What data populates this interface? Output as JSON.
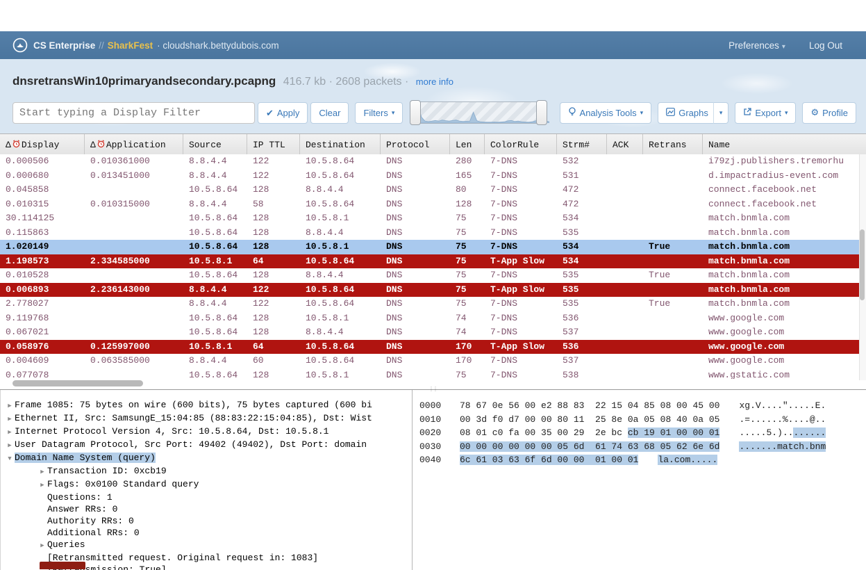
{
  "colors": {
    "appbar_blue": "#4a759e",
    "sharkfest_gold": "#e9c14c",
    "accent_blue": "#3978b8",
    "row_text_purple": "#82566f",
    "slow_row_red": "#b01410",
    "selected_row_blue": "#a9c9ee",
    "hex_highlight_blue": "#b4cee8"
  },
  "icons": {
    "delta": "Δ",
    "check": "✔",
    "caret": "▾",
    "gear": "⚙",
    "tri_right": "▶",
    "tri_down": "▼",
    "dot_sep": "·",
    "gripper_dots": "⋮⋮"
  },
  "header": {
    "brand": "CS Enterprise",
    "brand_sep": "//",
    "event": "SharkFest",
    "host": "· cloudshark.bettydubois.com",
    "preferences": "Preferences",
    "logout": "Log Out"
  },
  "file_bar": {
    "filename": "dnsretransWin10primaryandsecondary.pcapng",
    "meta": "416.7 kb · 2608 packets ·",
    "more_info": "more info"
  },
  "filter_bar": {
    "placeholder": "Start typing a Display Filter",
    "apply": "Apply",
    "clear": "Clear",
    "filters": "Filters",
    "analysis_tools": "Analysis Tools",
    "graphs": "Graphs",
    "export": "Export",
    "profile": "Profile",
    "sparkline": {
      "heights": [
        0.06,
        0.9,
        0.3,
        0.1,
        0.07,
        0.1,
        0.13,
        0.1,
        0.15,
        0.12,
        0.1,
        0.13,
        0.15,
        0.1,
        0.08,
        0.09,
        0.1,
        0.55,
        0.12,
        0.06,
        0.05,
        0.04,
        0.04,
        0.05,
        0.04,
        0.05,
        0.06,
        0.11,
        0.13,
        0.08,
        0.1,
        0.06,
        0.05,
        0.04,
        0.06,
        0.11,
        0.15,
        0.08,
        0.11,
        0.06
      ]
    }
  },
  "packet_table": {
    "columns": [
      {
        "label": "Display",
        "delta_clock": true
      },
      {
        "label": "Application",
        "delta_clock": true
      },
      {
        "label": "Source"
      },
      {
        "label": "IP TTL"
      },
      {
        "label": "Destination"
      },
      {
        "label": "Protocol"
      },
      {
        "label": "Len"
      },
      {
        "label": "ColorRule"
      },
      {
        "label": "Strm#"
      },
      {
        "label": "ACK"
      },
      {
        "label": "Retrans"
      },
      {
        "label": "Name"
      }
    ],
    "rows": [
      {
        "display": "0.000506",
        "application": "0.010361000",
        "source": "8.8.4.4",
        "ip_ttl": "122",
        "destination": "10.5.8.64",
        "protocol": "DNS",
        "len": "280",
        "color_rule": "7-DNS",
        "stream": "532",
        "ack": "",
        "retrans": "",
        "name": "i79zj.publishers.tremorhu",
        "state": "normal"
      },
      {
        "display": "0.000680",
        "application": "0.013451000",
        "source": "8.8.4.4",
        "ip_ttl": "122",
        "destination": "10.5.8.64",
        "protocol": "DNS",
        "len": "165",
        "color_rule": "7-DNS",
        "stream": "531",
        "ack": "",
        "retrans": "",
        "name": "d.impactradius-event.com",
        "state": "normal"
      },
      {
        "display": "0.045858",
        "application": "",
        "source": "10.5.8.64",
        "ip_ttl": "128",
        "destination": "8.8.4.4",
        "protocol": "DNS",
        "len": "80",
        "color_rule": "7-DNS",
        "stream": "472",
        "ack": "",
        "retrans": "",
        "name": "connect.facebook.net",
        "state": "normal"
      },
      {
        "display": "0.010315",
        "application": "0.010315000",
        "source": "8.8.4.4",
        "ip_ttl": "58",
        "destination": "10.5.8.64",
        "protocol": "DNS",
        "len": "128",
        "color_rule": "7-DNS",
        "stream": "472",
        "ack": "",
        "retrans": "",
        "name": "connect.facebook.net",
        "state": "normal"
      },
      {
        "display": "30.114125",
        "application": "",
        "source": "10.5.8.64",
        "ip_ttl": "128",
        "destination": "10.5.8.1",
        "protocol": "DNS",
        "len": "75",
        "color_rule": "7-DNS",
        "stream": "534",
        "ack": "",
        "retrans": "",
        "name": "match.bnmla.com",
        "state": "normal"
      },
      {
        "display": "0.115863",
        "application": "",
        "source": "10.5.8.64",
        "ip_ttl": "128",
        "destination": "8.8.4.4",
        "protocol": "DNS",
        "len": "75",
        "color_rule": "7-DNS",
        "stream": "535",
        "ack": "",
        "retrans": "",
        "name": "match.bnmla.com",
        "state": "normal"
      },
      {
        "display": "1.020149",
        "application": "",
        "source": "10.5.8.64",
        "ip_ttl": "128",
        "destination": "10.5.8.1",
        "protocol": "DNS",
        "len": "75",
        "color_rule": "7-DNS",
        "stream": "534",
        "ack": "",
        "retrans": "True",
        "name": "match.bnmla.com",
        "state": "selected"
      },
      {
        "display": "1.198573",
        "application": "2.334585000",
        "source": "10.5.8.1",
        "ip_ttl": "64",
        "destination": "10.5.8.64",
        "protocol": "DNS",
        "len": "75",
        "color_rule": "T-App Slow",
        "stream": "534",
        "ack": "",
        "retrans": "",
        "name": "match.bnmla.com",
        "state": "slow"
      },
      {
        "display": "0.010528",
        "application": "",
        "source": "10.5.8.64",
        "ip_ttl": "128",
        "destination": "8.8.4.4",
        "protocol": "DNS",
        "len": "75",
        "color_rule": "7-DNS",
        "stream": "535",
        "ack": "",
        "retrans": "True",
        "name": "match.bnmla.com",
        "state": "normal"
      },
      {
        "display": "0.006893",
        "application": "2.236143000",
        "source": "8.8.4.4",
        "ip_ttl": "122",
        "destination": "10.5.8.64",
        "protocol": "DNS",
        "len": "75",
        "color_rule": "T-App Slow",
        "stream": "535",
        "ack": "",
        "retrans": "",
        "name": "match.bnmla.com",
        "state": "slow"
      },
      {
        "display": "2.778027",
        "application": "",
        "source": "8.8.4.4",
        "ip_ttl": "122",
        "destination": "10.5.8.64",
        "protocol": "DNS",
        "len": "75",
        "color_rule": "7-DNS",
        "stream": "535",
        "ack": "",
        "retrans": "True",
        "name": "match.bnmla.com",
        "state": "normal"
      },
      {
        "display": "9.119768",
        "application": "",
        "source": "10.5.8.64",
        "ip_ttl": "128",
        "destination": "10.5.8.1",
        "protocol": "DNS",
        "len": "74",
        "color_rule": "7-DNS",
        "stream": "536",
        "ack": "",
        "retrans": "",
        "name": "www.google.com",
        "state": "normal"
      },
      {
        "display": "0.067021",
        "application": "",
        "source": "10.5.8.64",
        "ip_ttl": "128",
        "destination": "8.8.4.4",
        "protocol": "DNS",
        "len": "74",
        "color_rule": "7-DNS",
        "stream": "537",
        "ack": "",
        "retrans": "",
        "name": "www.google.com",
        "state": "normal"
      },
      {
        "display": "0.058976",
        "application": "0.125997000",
        "source": "10.5.8.1",
        "ip_ttl": "64",
        "destination": "10.5.8.64",
        "protocol": "DNS",
        "len": "170",
        "color_rule": "T-App Slow",
        "stream": "536",
        "ack": "",
        "retrans": "",
        "name": "www.google.com",
        "state": "slow"
      },
      {
        "display": "0.004609",
        "application": "0.063585000",
        "source": "8.8.4.4",
        "ip_ttl": "60",
        "destination": "10.5.8.64",
        "protocol": "DNS",
        "len": "170",
        "color_rule": "7-DNS",
        "stream": "537",
        "ack": "",
        "retrans": "",
        "name": "www.google.com",
        "state": "normal"
      },
      {
        "display": "0.077078",
        "application": "",
        "source": "10.5.8.64",
        "ip_ttl": "128",
        "destination": "10.5.8.1",
        "protocol": "DNS",
        "len": "75",
        "color_rule": "7-DNS",
        "stream": "538",
        "ack": "",
        "retrans": "",
        "name": "www.gstatic.com",
        "state": "normal"
      }
    ]
  },
  "detail_tree": {
    "lines": [
      {
        "arrow": "r",
        "indent": 0,
        "text": "Frame 1085: 75 bytes on wire (600 bits), 75 bytes captured (600 bi"
      },
      {
        "arrow": "r",
        "indent": 0,
        "text": "Ethernet II, Src: SamsungE_15:04:85 (88:83:22:15:04:85), Dst: Wist"
      },
      {
        "arrow": "r",
        "indent": 0,
        "text": "Internet Protocol Version 4, Src: 10.5.8.64, Dst: 10.5.8.1"
      },
      {
        "arrow": "r",
        "indent": 0,
        "text": "User Datagram Protocol, Src Port: 49402 (49402), Dst Port: domain"
      },
      {
        "arrow": "d",
        "indent": 0,
        "text": "Domain Name System (query)",
        "hl": true
      },
      {
        "arrow": "r",
        "indent": 1,
        "text": "Transaction ID: 0xcb19"
      },
      {
        "arrow": "r",
        "indent": 1,
        "text": "Flags: 0x0100 Standard query"
      },
      {
        "arrow": null,
        "indent": 1,
        "text": "Questions: 1"
      },
      {
        "arrow": null,
        "indent": 1,
        "text": "Answer RRs: 0"
      },
      {
        "arrow": null,
        "indent": 1,
        "text": "Authority RRs: 0"
      },
      {
        "arrow": null,
        "indent": 1,
        "text": "Additional RRs: 0"
      },
      {
        "arrow": "r",
        "indent": 1,
        "text": "Queries"
      },
      {
        "arrow": null,
        "indent": 1,
        "text": "[Retransmitted request. Original request in: 1083]"
      },
      {
        "arrow": null,
        "indent": 1,
        "text": "[Retransmission: True]"
      }
    ]
  },
  "hex_view": {
    "rows": [
      {
        "offset": "0000",
        "bytes": [
          "78",
          "67",
          "0e",
          "56",
          "00",
          "e2",
          "88",
          "83",
          "22",
          "15",
          "04",
          "85",
          "08",
          "00",
          "45",
          "00"
        ],
        "ascii": "xg.V....\".....E.",
        "hl": null,
        "ascii_hl": null
      },
      {
        "offset": "0010",
        "bytes": [
          "00",
          "3d",
          "f0",
          "d7",
          "00",
          "00",
          "80",
          "11",
          "25",
          "8e",
          "0a",
          "05",
          "08",
          "40",
          "0a",
          "05"
        ],
        "ascii": ".=......%....@..",
        "hl": null,
        "ascii_hl": null
      },
      {
        "offset": "0020",
        "bytes": [
          "08",
          "01",
          "c0",
          "fa",
          "00",
          "35",
          "00",
          "29",
          "2e",
          "bc",
          "cb",
          "19",
          "01",
          "00",
          "00",
          "01"
        ],
        "ascii": ".....5.)........",
        "hl": [
          10,
          15
        ],
        "ascii_hl": [
          10,
          15
        ]
      },
      {
        "offset": "0030",
        "bytes": [
          "00",
          "00",
          "00",
          "00",
          "00",
          "00",
          "05",
          "6d",
          "61",
          "74",
          "63",
          "68",
          "05",
          "62",
          "6e",
          "6d"
        ],
        "ascii": ".......match.bnm",
        "hl": [
          0,
          15
        ],
        "ascii_hl": [
          0,
          15
        ]
      },
      {
        "offset": "0040",
        "bytes": [
          "6c",
          "61",
          "03",
          "63",
          "6f",
          "6d",
          "00",
          "00",
          "01",
          "00",
          "01"
        ],
        "ascii": "la.com.....",
        "hl": [
          0,
          10
        ],
        "ascii_hl": [
          0,
          10
        ]
      }
    ]
  }
}
